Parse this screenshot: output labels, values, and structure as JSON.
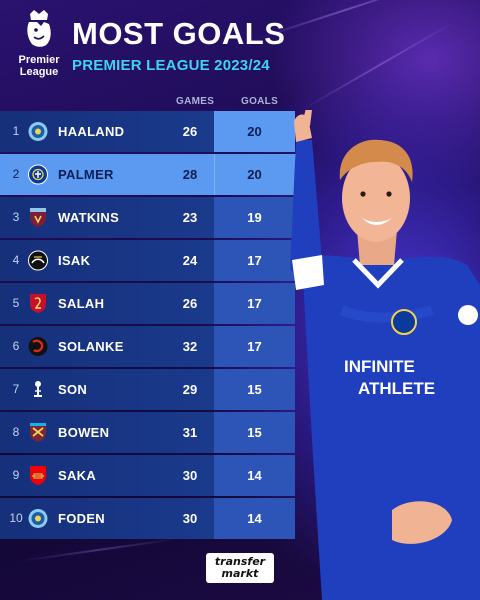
{
  "header": {
    "logo_line1": "Premier",
    "logo_line2": "League",
    "title": "MOST GOALS",
    "subtitle": "PREMIER LEAGUE 2023/24"
  },
  "columns": {
    "games": "GAMES",
    "goals": "GOALS"
  },
  "rows": [
    {
      "rank": "1",
      "player": "HAALAND",
      "club_crest": "man-city-crest",
      "games": "26",
      "goals": "20"
    },
    {
      "rank": "2",
      "player": "PALMER",
      "club_crest": "chelsea-crest",
      "games": "28",
      "goals": "20"
    },
    {
      "rank": "3",
      "player": "WATKINS",
      "club_crest": "aston-villa-crest",
      "games": "23",
      "goals": "19"
    },
    {
      "rank": "4",
      "player": "ISAK",
      "club_crest": "newcastle-crest",
      "games": "24",
      "goals": "17"
    },
    {
      "rank": "5",
      "player": "SALAH",
      "club_crest": "liverpool-crest",
      "games": "26",
      "goals": "17"
    },
    {
      "rank": "6",
      "player": "SOLANKE",
      "club_crest": "bournemouth-crest",
      "games": "32",
      "goals": "17"
    },
    {
      "rank": "7",
      "player": "SON",
      "club_crest": "tottenham-crest",
      "games": "29",
      "goals": "15"
    },
    {
      "rank": "8",
      "player": "BOWEN",
      "club_crest": "west-ham-crest",
      "games": "31",
      "goals": "15"
    },
    {
      "rank": "9",
      "player": "SAKA",
      "club_crest": "arsenal-crest",
      "games": "30",
      "goals": "14"
    },
    {
      "rank": "10",
      "player": "FODEN",
      "club_crest": "man-city-crest",
      "games": "30",
      "goals": "14"
    }
  ],
  "footer": {
    "brand_line1": "transfer",
    "brand_line2": "markt"
  },
  "colors": {
    "background": "#1d0b52",
    "row": "#1a3a8c",
    "goals_cell": "#2d55b8",
    "highlight": "#5b9af0",
    "accent_cyan": "#3fd3f0",
    "shirt_blue": "#1f3fbf"
  }
}
